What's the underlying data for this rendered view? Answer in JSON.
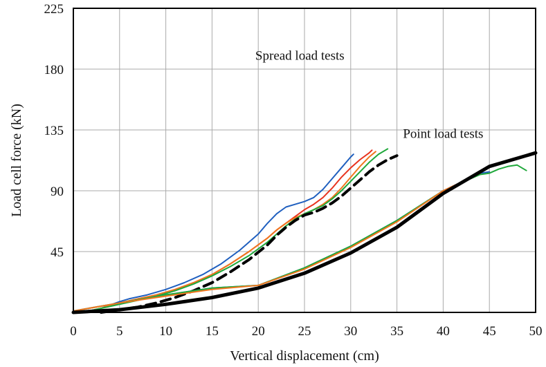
{
  "chart_data": {
    "type": "line",
    "xlabel": "Vertical displacement (cm)",
    "ylabel": "Load cell force (kN)",
    "xlim": [
      0,
      50
    ],
    "ylim": [
      0,
      225
    ],
    "x_ticks": [
      0,
      5,
      10,
      15,
      20,
      25,
      30,
      35,
      40,
      45,
      50
    ],
    "y_ticks": [
      45,
      90,
      135,
      180,
      225
    ],
    "grid": true,
    "annotations": [
      {
        "text": "Spread load tests",
        "x": 24.5,
        "y": 187
      },
      {
        "text": "Point load tests",
        "x": 40,
        "y": 129
      }
    ],
    "series": [
      {
        "color": "#1f5fbf",
        "width": 2,
        "dash": false,
        "points": [
          [
            1,
            0
          ],
          [
            3,
            3
          ],
          [
            5,
            8
          ],
          [
            6,
            10
          ],
          [
            8,
            13
          ],
          [
            10,
            17
          ],
          [
            12,
            22
          ],
          [
            14,
            28
          ],
          [
            16,
            36
          ],
          [
            18,
            46
          ],
          [
            20,
            58
          ],
          [
            21,
            66
          ],
          [
            22,
            73
          ],
          [
            23,
            78
          ],
          [
            24,
            80
          ],
          [
            25,
            82
          ],
          [
            26,
            85
          ],
          [
            27,
            91
          ],
          [
            28,
            99
          ],
          [
            29,
            107
          ],
          [
            30,
            115
          ],
          [
            30.3,
            117
          ]
        ]
      },
      {
        "color": "#e8331e",
        "width": 2,
        "dash": false,
        "points": [
          [
            1,
            0
          ],
          [
            3,
            3
          ],
          [
            5,
            7
          ],
          [
            7,
            10
          ],
          [
            9,
            13
          ],
          [
            11,
            17
          ],
          [
            13,
            22
          ],
          [
            15,
            28
          ],
          [
            17,
            36
          ],
          [
            19,
            45
          ],
          [
            21,
            55
          ],
          [
            22,
            61
          ],
          [
            23,
            66
          ],
          [
            24,
            71
          ],
          [
            25,
            76
          ],
          [
            26,
            80
          ],
          [
            27,
            85
          ],
          [
            28,
            92
          ],
          [
            29,
            100
          ],
          [
            30,
            107
          ],
          [
            31,
            113
          ],
          [
            32,
            118
          ],
          [
            32.3,
            120
          ]
        ]
      },
      {
        "color": "#f0761e",
        "width": 2,
        "dash": false,
        "points": [
          [
            1,
            0
          ],
          [
            3,
            3
          ],
          [
            5,
            7
          ],
          [
            7,
            10
          ],
          [
            9,
            13
          ],
          [
            11,
            17
          ],
          [
            13,
            22
          ],
          [
            15,
            28
          ],
          [
            17,
            36
          ],
          [
            19,
            45
          ],
          [
            21,
            55
          ],
          [
            22,
            61
          ],
          [
            23,
            66
          ],
          [
            24,
            70
          ],
          [
            25,
            73
          ],
          [
            26,
            76
          ],
          [
            27,
            80
          ],
          [
            28,
            85
          ],
          [
            29,
            92
          ],
          [
            30,
            100
          ],
          [
            31,
            108
          ],
          [
            32,
            115
          ],
          [
            32.7,
            119
          ]
        ]
      },
      {
        "color": "#1fa83b",
        "width": 2,
        "dash": false,
        "points": [
          [
            1,
            0
          ],
          [
            3,
            3
          ],
          [
            5,
            6
          ],
          [
            7,
            9
          ],
          [
            9,
            12
          ],
          [
            11,
            16
          ],
          [
            13,
            21
          ],
          [
            15,
            27
          ],
          [
            17,
            34
          ],
          [
            19,
            42
          ],
          [
            21,
            52
          ],
          [
            22,
            58
          ],
          [
            23,
            64
          ],
          [
            24,
            69
          ],
          [
            25,
            73
          ],
          [
            26,
            76
          ],
          [
            27,
            79
          ],
          [
            28,
            84
          ],
          [
            29,
            90
          ],
          [
            30,
            97
          ],
          [
            31,
            104
          ],
          [
            32,
            111
          ],
          [
            33,
            117
          ],
          [
            34,
            121
          ]
        ]
      },
      {
        "color": "#000000",
        "width": 4,
        "dash": true,
        "points": [
          [
            3,
            0
          ],
          [
            5,
            2
          ],
          [
            7,
            4
          ],
          [
            9,
            7
          ],
          [
            11,
            11
          ],
          [
            13,
            16
          ],
          [
            15,
            22
          ],
          [
            17,
            30
          ],
          [
            19,
            39
          ],
          [
            21,
            50
          ],
          [
            22,
            57
          ],
          [
            23,
            63
          ],
          [
            24,
            68
          ],
          [
            25,
            72
          ],
          [
            26,
            74
          ],
          [
            27,
            77
          ],
          [
            28,
            81
          ],
          [
            29,
            86
          ],
          [
            30,
            92
          ],
          [
            31,
            98
          ],
          [
            32,
            104
          ],
          [
            33,
            109
          ],
          [
            34,
            113
          ],
          [
            35,
            116
          ]
        ]
      },
      {
        "color": "#1f5fbf",
        "width": 2,
        "dash": false,
        "points": [
          [
            0,
            1
          ],
          [
            5,
            7
          ],
          [
            10,
            13
          ],
          [
            15,
            18
          ],
          [
            20,
            20
          ],
          [
            25,
            33
          ],
          [
            30,
            49
          ],
          [
            35,
            68
          ],
          [
            40,
            90
          ],
          [
            44,
            103
          ],
          [
            45,
            104
          ]
        ]
      },
      {
        "color": "#1fa83b",
        "width": 2,
        "dash": false,
        "points": [
          [
            0,
            1
          ],
          [
            5,
            7
          ],
          [
            10,
            13
          ],
          [
            15,
            18
          ],
          [
            20,
            20
          ],
          [
            25,
            33
          ],
          [
            30,
            49
          ],
          [
            35,
            68
          ],
          [
            40,
            90
          ],
          [
            44,
            102
          ],
          [
            45,
            103
          ],
          [
            46,
            106
          ],
          [
            47,
            108
          ],
          [
            48,
            109
          ],
          [
            48.5,
            107
          ],
          [
            49,
            105
          ]
        ]
      },
      {
        "color": "#f0761e",
        "width": 2,
        "dash": false,
        "points": [
          [
            0,
            1
          ],
          [
            5,
            7
          ],
          [
            10,
            12
          ],
          [
            15,
            17
          ],
          [
            20,
            20
          ],
          [
            25,
            32
          ],
          [
            30,
            48
          ],
          [
            35,
            67
          ],
          [
            40,
            90
          ],
          [
            44,
            103
          ]
        ]
      },
      {
        "color": "#000000",
        "width": 5,
        "dash": false,
        "points": [
          [
            0,
            0
          ],
          [
            5,
            2
          ],
          [
            10,
            6
          ],
          [
            15,
            11
          ],
          [
            20,
            18
          ],
          [
            25,
            29
          ],
          [
            30,
            44
          ],
          [
            35,
            63
          ],
          [
            40,
            88
          ],
          [
            45,
            108
          ],
          [
            50,
            118
          ]
        ]
      }
    ]
  }
}
